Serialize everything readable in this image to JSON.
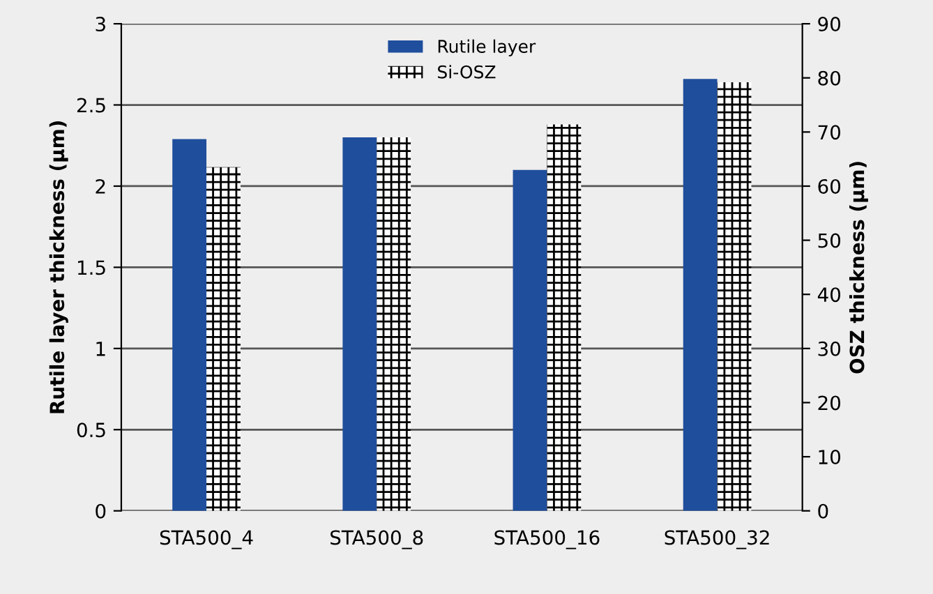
{
  "chart_data": {
    "type": "bar",
    "ylabel": "Rutile layer thickness (µm)",
    "y2label": "OSZ thickness (µm)",
    "categories": [
      "STA500_4",
      "STA500_8",
      "STA500_16",
      "STA500_32"
    ],
    "series": [
      {
        "name": "Rutile layer",
        "color": "#1f4e9c",
        "values": [
          2.29,
          2.3,
          2.1,
          2.66
        ]
      },
      {
        "name": "Si-OSZ",
        "color": "#000000",
        "axis": "y2",
        "values": [
          63.5,
          69,
          71.4,
          79.2
        ]
      }
    ],
    "ylim": [
      0,
      3
    ],
    "yticks": [
      0,
      0.5,
      1,
      1.5,
      2,
      2.5,
      3
    ],
    "y2lim": [
      0,
      90
    ],
    "y2ticks": [
      0,
      10,
      20,
      30,
      40,
      50,
      60,
      70,
      80,
      90
    ],
    "grid": "y",
    "legend": "top"
  }
}
